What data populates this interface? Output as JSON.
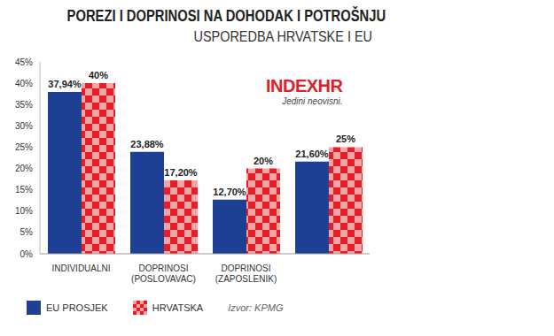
{
  "chart_data": {
    "type": "bar",
    "title": "POREZI I DOPRINOSI NA DOHODAK I POTROŠNJU",
    "subtitle": "USPOREDBA HRVATSKE I EU",
    "logo": "INDEXHR",
    "logo_tagline": "Jedini neovisni.",
    "source": "Izvor: KPMG",
    "categories": [
      "INDIVIDUALNI",
      "DOPRINOSI (POSLOVAVAC)",
      "DOPRINOSI (ZAPOSLENIK)",
      null
    ],
    "series": [
      {
        "name": "EU PROSJEK",
        "color": "#1d3f94",
        "values": [
          37.94,
          23.88,
          12.7,
          21.6
        ],
        "value_labels": [
          "37,94%",
          "23,88%",
          "12,70%",
          "21,60%"
        ]
      },
      {
        "name": "HRVATSKA",
        "color": "#e31e26",
        "values": [
          40,
          17.2,
          20,
          25
        ],
        "value_labels": [
          "40%",
          "17,20%",
          "20%",
          "25%"
        ]
      }
    ],
    "ylim": [
      0,
      45
    ],
    "yticks": [
      {
        "value": 0,
        "label": "0%"
      },
      {
        "value": 5,
        "label": "5%"
      },
      {
        "value": 10,
        "label": "10%"
      },
      {
        "value": 15,
        "label": "15%"
      },
      {
        "value": 20,
        "label": "20%"
      },
      {
        "value": 25,
        "label": "25%"
      },
      {
        "value": 30,
        "label": "30%"
      },
      {
        "value": 35,
        "label": "35%"
      },
      {
        "value": 40,
        "label": "40%"
      },
      {
        "value": 45,
        "label": "45%"
      }
    ],
    "grid": false,
    "data_labels": true
  }
}
